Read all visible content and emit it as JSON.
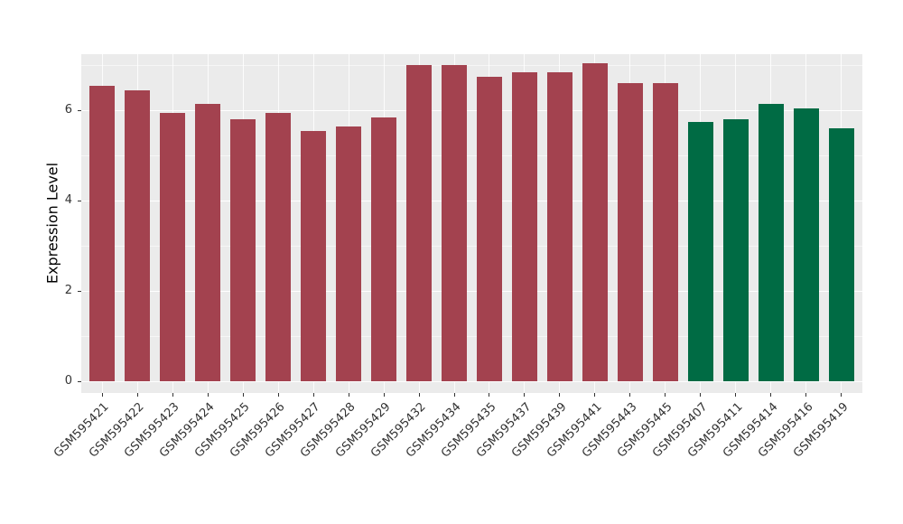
{
  "chart_data": {
    "type": "bar",
    "title": "",
    "xlabel": "",
    "ylabel": "Expression Level",
    "categories": [
      "GSM595421",
      "GSM595422",
      "GSM595423",
      "GSM595424",
      "GSM595425",
      "GSM595426",
      "GSM595427",
      "GSM595428",
      "GSM595429",
      "GSM595432",
      "GSM595434",
      "GSM595435",
      "GSM595437",
      "GSM595439",
      "GSM595441",
      "GSM595443",
      "GSM595445",
      "GSM595407",
      "GSM595411",
      "GSM595414",
      "GSM595416",
      "GSM595419"
    ],
    "values": [
      6.55,
      6.45,
      5.95,
      6.15,
      5.8,
      5.95,
      5.55,
      5.65,
      5.85,
      7.0,
      7.0,
      6.75,
      6.85,
      6.85,
      7.05,
      6.6,
      6.6,
      5.75,
      5.8,
      6.15,
      6.05,
      5.6
    ],
    "bar_colors": [
      "#A3424F",
      "#A3424F",
      "#A3424F",
      "#A3424F",
      "#A3424F",
      "#A3424F",
      "#A3424F",
      "#A3424F",
      "#A3424F",
      "#A3424F",
      "#A3424F",
      "#A3424F",
      "#A3424F",
      "#A3424F",
      "#A3424F",
      "#A3424F",
      "#A3424F",
      "#006B44",
      "#006B44",
      "#006B44",
      "#006B44",
      "#006B44"
    ],
    "yticks": [
      0,
      2,
      4,
      6
    ],
    "ytick_labels": [
      "0",
      "2",
      "4",
      "6"
    ],
    "ylim": [
      -0.26,
      7.24
    ],
    "grid": "on",
    "legend": "none",
    "panel_background": "#EBEBEB",
    "figure_background": "#FFFFFF",
    "grid_color": "#FFFFFF",
    "axis_text_color": "#333333"
  }
}
